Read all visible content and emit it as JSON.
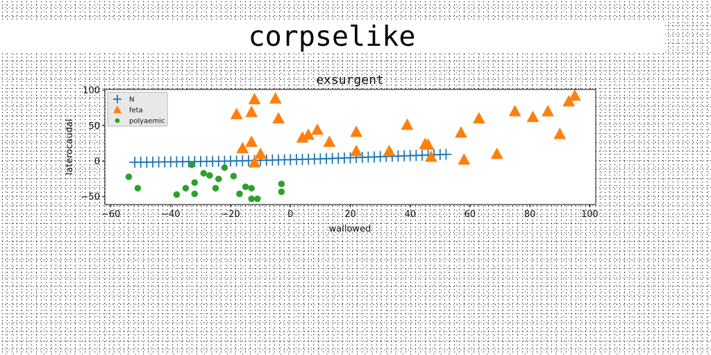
{
  "page_title": "corpselike",
  "chart_data": {
    "type": "scatter",
    "title": "exsurgent",
    "xlabel": "wallowed",
    "ylabel": "laterocaudal",
    "xlim": [
      -62,
      102
    ],
    "ylim": [
      -61,
      101
    ],
    "xticks": [
      -60,
      -40,
      -20,
      0,
      20,
      40,
      60,
      80,
      100
    ],
    "yticks": [
      -50,
      0,
      50,
      100
    ],
    "xtick_labels": [
      "−60",
      "−40",
      "−20",
      "0",
      "20",
      "40",
      "60",
      "80",
      "100"
    ],
    "ytick_labels": [
      "−50",
      "0",
      "50",
      "100"
    ],
    "grid": false,
    "legend_position": "top-left",
    "series": [
      {
        "name": "N",
        "marker": "plus",
        "color": "#1f77b4",
        "x": [
          -52,
          -50,
          -48,
          -46,
          -44,
          -42,
          -40,
          -38,
          -36,
          -34,
          -32,
          -30,
          -28,
          -26,
          -24,
          -22,
          -20,
          -18,
          -16,
          -14,
          -12,
          -10,
          -8,
          -6,
          -4,
          -2,
          0,
          2,
          4,
          6,
          8,
          10,
          12,
          14,
          16,
          18,
          20,
          22,
          24,
          26,
          28,
          30,
          32,
          34,
          36,
          38,
          40,
          42,
          44,
          46,
          48,
          50,
          52
        ],
        "y": [
          -1.5,
          -1.4,
          -1.3,
          -1.2,
          -1.1,
          -1.0,
          -0.9,
          -0.8,
          -0.7,
          -0.6,
          -0.5,
          -0.4,
          -0.3,
          -0.2,
          -0.1,
          0.0,
          0.2,
          0.4,
          0.6,
          0.8,
          1.0,
          1.2,
          1.4,
          1.6,
          1.8,
          2.0,
          2.2,
          2.4,
          2.6,
          2.8,
          3.0,
          3.3,
          3.6,
          3.9,
          4.2,
          4.5,
          4.8,
          5.1,
          5.4,
          5.7,
          6.0,
          6.3,
          6.6,
          6.9,
          7.2,
          7.5,
          7.8,
          8.1,
          8.4,
          8.7,
          9.0,
          9.3,
          9.6
        ]
      },
      {
        "name": "feta",
        "marker": "triangle",
        "color": "#ff7f0e",
        "x": [
          -12,
          -5,
          -18,
          -13,
          -4,
          -16,
          -13,
          -10,
          -12,
          4,
          6,
          9,
          13,
          22,
          22,
          33,
          39,
          45,
          46,
          47,
          57,
          58,
          63,
          69,
          75,
          81,
          86,
          90,
          93,
          95
        ],
        "y": [
          87,
          88,
          66,
          69,
          60,
          18,
          27,
          10,
          -2,
          33,
          37,
          44,
          27,
          41,
          14,
          14,
          51,
          24,
          23,
          6,
          40,
          2,
          60,
          10,
          70,
          62,
          70,
          38,
          84,
          92
        ]
      },
      {
        "name": "polyaemic",
        "marker": "circle",
        "color": "#2ca02c",
        "x": [
          -54,
          -51,
          -33,
          -29,
          -27,
          -32,
          -24,
          -35,
          -32,
          -38,
          -22,
          -19,
          -25,
          -15,
          -13,
          -17,
          -13,
          -11,
          -3,
          -3
        ],
        "y": [
          -22,
          -38,
          -5,
          -17,
          -20,
          -30,
          -25,
          -38,
          -46,
          -47,
          -9,
          -21,
          -38,
          -36,
          -38,
          -46,
          -53,
          -53,
          -32,
          -43
        ]
      }
    ]
  }
}
